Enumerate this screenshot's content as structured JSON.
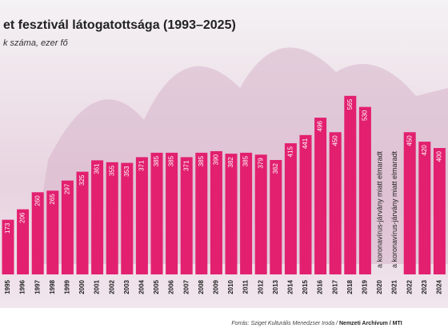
{
  "chart_data": {
    "type": "bar",
    "title": "et fesztivál látogatottsága (1993–2025)",
    "subtitle": "k száma, ezer fő",
    "categories": [
      "1995",
      "1996",
      "1997",
      "1998",
      "1999",
      "2000",
      "2001",
      "2002",
      "2003",
      "2004",
      "2005",
      "2006",
      "2007",
      "2008",
      "2009",
      "2010",
      "2011",
      "2012",
      "2013",
      "2014",
      "2015",
      "2016",
      "2017",
      "2018",
      "2019",
      "2020",
      "2021",
      "2022",
      "2023",
      "2024"
    ],
    "values": [
      173,
      206,
      260,
      265,
      297,
      325,
      361,
      355,
      353,
      371,
      385,
      385,
      371,
      385,
      390,
      382,
      385,
      379,
      362,
      415,
      441,
      496,
      450,
      565,
      530,
      null,
      null,
      450,
      420,
      400
    ],
    "color": "#e2206f",
    "annotations": [
      {
        "category": "2020",
        "text": "a koronavírus-járvány miatt elmaradt"
      },
      {
        "category": "2021",
        "text": "a koronavírus-járvány miatt elmaradt"
      }
    ],
    "source": "Forrás: Sziget Kulturális Menedzser Iroda /",
    "credit": "Nemzeti Archívum / MTI"
  }
}
